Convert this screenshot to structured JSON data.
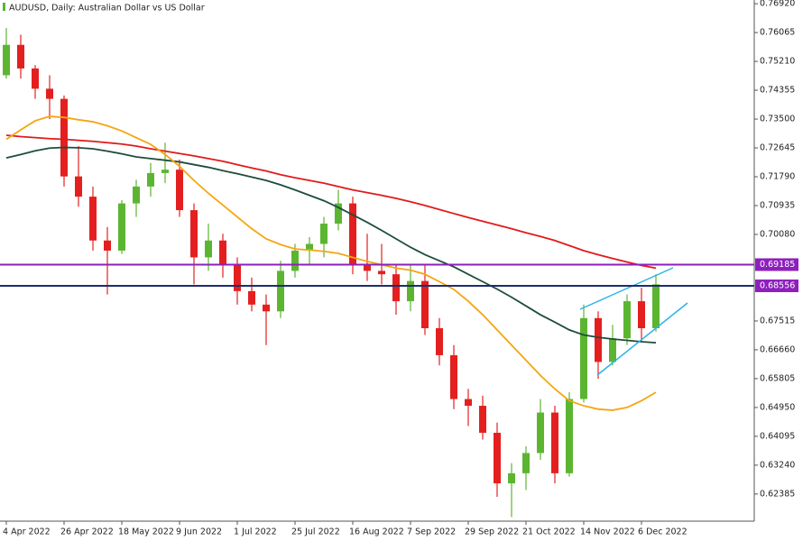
{
  "chart_data": {
    "type": "candlestick",
    "title": "AUDUSD, Daily:  Australian Dollar vs US Dollar",
    "categories": [
      "4 Apr 2022",
      null,
      null,
      null,
      "26 Apr 2022",
      null,
      null,
      null,
      "18 May 2022",
      null,
      null,
      null,
      "9 Jun 2022",
      null,
      null,
      null,
      "1 Jul 2022",
      null,
      null,
      null,
      "25 Jul 2022",
      null,
      null,
      null,
      "16 Aug 2022",
      null,
      null,
      null,
      "7 Sep 2022",
      null,
      null,
      null,
      "29 Sep 2022",
      null,
      null,
      null,
      "21 Oct 2022",
      null,
      null,
      null,
      "14 Nov 2022",
      null,
      null,
      null,
      "6 Dec 2022",
      null
    ],
    "ohlc": [
      [
        0.748,
        0.762,
        0.747,
        0.757
      ],
      [
        0.757,
        0.76,
        0.747,
        0.75
      ],
      [
        0.75,
        0.751,
        0.741,
        0.744
      ],
      [
        0.744,
        0.748,
        0.735,
        0.741
      ],
      [
        0.741,
        0.742,
        0.715,
        0.718
      ],
      [
        0.718,
        0.727,
        0.709,
        0.712
      ],
      [
        0.712,
        0.715,
        0.696,
        0.699
      ],
      [
        0.699,
        0.703,
        0.683,
        0.696
      ],
      [
        0.696,
        0.711,
        0.695,
        0.71
      ],
      [
        0.71,
        0.717,
        0.706,
        0.715
      ],
      [
        0.715,
        0.722,
        0.712,
        0.719
      ],
      [
        0.719,
        0.728,
        0.716,
        0.72
      ],
      [
        0.72,
        0.723,
        0.706,
        0.708
      ],
      [
        0.708,
        0.71,
        0.686,
        0.694
      ],
      [
        0.694,
        0.704,
        0.69,
        0.699
      ],
      [
        0.699,
        0.701,
        0.688,
        0.692
      ],
      [
        0.692,
        0.694,
        0.68,
        0.684
      ],
      [
        0.684,
        0.688,
        0.678,
        0.68
      ],
      [
        0.68,
        0.683,
        0.668,
        0.678
      ],
      [
        0.678,
        0.693,
        0.676,
        0.69
      ],
      [
        0.69,
        0.698,
        0.688,
        0.696
      ],
      [
        0.696,
        0.7,
        0.692,
        0.698
      ],
      [
        0.698,
        0.706,
        0.694,
        0.704
      ],
      [
        0.704,
        0.714,
        0.702,
        0.71
      ],
      [
        0.71,
        0.712,
        0.689,
        0.692
      ],
      [
        0.692,
        0.701,
        0.687,
        0.69
      ],
      [
        0.69,
        0.698,
        0.686,
        0.689
      ],
      [
        0.689,
        0.692,
        0.677,
        0.681
      ],
      [
        0.681,
        0.692,
        0.678,
        0.687
      ],
      [
        0.687,
        0.692,
        0.671,
        0.673
      ],
      [
        0.673,
        0.676,
        0.662,
        0.665
      ],
      [
        0.665,
        0.668,
        0.649,
        0.652
      ],
      [
        0.652,
        0.655,
        0.644,
        0.65
      ],
      [
        0.65,
        0.653,
        0.64,
        0.642
      ],
      [
        0.642,
        0.645,
        0.623,
        0.627
      ],
      [
        0.627,
        0.633,
        0.617,
        0.63
      ],
      [
        0.63,
        0.638,
        0.625,
        0.636
      ],
      [
        0.636,
        0.652,
        0.634,
        0.648
      ],
      [
        0.648,
        0.65,
        0.627,
        0.63
      ],
      [
        0.63,
        0.654,
        0.629,
        0.652
      ],
      [
        0.652,
        0.68,
        0.651,
        0.676
      ],
      [
        0.676,
        0.678,
        0.658,
        0.663
      ],
      [
        0.663,
        0.674,
        0.662,
        0.67
      ],
      [
        0.67,
        0.683,
        0.668,
        0.681
      ],
      [
        0.681,
        0.685,
        0.669,
        0.673
      ],
      [
        0.673,
        0.689,
        0.672,
        0.686
      ]
    ],
    "up_color": "#5cb531",
    "down_color": "#e3201f",
    "series": [
      {
        "color": "#e01b1b",
        "values": [
          0.7302,
          0.7298,
          0.7295,
          0.7292,
          0.729,
          0.7287,
          0.7284,
          0.728,
          0.7276,
          0.727,
          0.7262,
          0.7255,
          0.7248,
          0.7241,
          0.7233,
          0.7225,
          0.7215,
          0.7205,
          0.7196,
          0.7185,
          0.7176,
          0.7168,
          0.716,
          0.715,
          0.714,
          0.7132,
          0.7124,
          0.7115,
          0.7105,
          0.7094,
          0.7082,
          0.707,
          0.7058,
          0.7047,
          0.7036,
          0.7025,
          0.7013,
          0.7002,
          0.699,
          0.6975,
          0.696,
          0.6948,
          0.6937,
          0.6926,
          0.6916,
          0.6908
        ]
      },
      {
        "color": "#1e4d3a",
        "values": [
          0.7235,
          0.7245,
          0.7256,
          0.7264,
          0.7266,
          0.7265,
          0.7262,
          0.7255,
          0.7247,
          0.7238,
          0.7233,
          0.7228,
          0.7223,
          0.7215,
          0.7207,
          0.7197,
          0.7188,
          0.7178,
          0.7168,
          0.7155,
          0.714,
          0.7124,
          0.7108,
          0.7088,
          0.7066,
          0.7044,
          0.702,
          0.6995,
          0.697,
          0.6948,
          0.693,
          0.6912,
          0.689,
          0.6868,
          0.6846,
          0.6822,
          0.6796,
          0.677,
          0.6748,
          0.6725,
          0.671,
          0.6703,
          0.6698,
          0.6694,
          0.669,
          0.6687
        ]
      },
      {
        "color": "#f5a511",
        "values": [
          0.729,
          0.7318,
          0.7345,
          0.7358,
          0.7355,
          0.7348,
          0.7342,
          0.733,
          0.7315,
          0.7295,
          0.7275,
          0.7245,
          0.721,
          0.7168,
          0.713,
          0.7095,
          0.706,
          0.7025,
          0.6995,
          0.6978,
          0.6965,
          0.6962,
          0.6958,
          0.6952,
          0.694,
          0.6928,
          0.6918,
          0.6908,
          0.6902,
          0.689,
          0.6868,
          0.6845,
          0.681,
          0.677,
          0.6725,
          0.668,
          0.6635,
          0.659,
          0.655,
          0.6515,
          0.65,
          0.649,
          0.6487,
          0.6495,
          0.6515,
          0.654
        ]
      }
    ],
    "levels": [
      {
        "value": 0.69185,
        "color": "#8e1fbd",
        "label_color": "#8e1fbd"
      },
      {
        "value": 0.68556,
        "color": "#1e2d6b",
        "label_color": "#8e1fbd"
      }
    ],
    "ylim": [
      0.6158,
      0.7703
    ],
    "yticks": [
      {
        "value": 0.7692,
        "label": "0.76920"
      },
      {
        "value": 0.76065,
        "label": "0.76065"
      },
      {
        "value": 0.7521,
        "label": "0.75210"
      },
      {
        "value": 0.74355,
        "label": "0.74355"
      },
      {
        "value": 0.735,
        "label": "0.73500"
      },
      {
        "value": 0.72645,
        "label": "0.72645"
      },
      {
        "value": 0.7179,
        "label": "0.71790"
      },
      {
        "value": 0.70935,
        "label": "0.70935"
      },
      {
        "value": 0.7008,
        "label": "0.70080"
      },
      {
        "value": 0.67515,
        "label": "0.67515"
      },
      {
        "value": 0.6666,
        "label": "0.66660"
      },
      {
        "value": 0.65805,
        "label": "0.65805"
      },
      {
        "value": 0.6495,
        "label": "0.64950"
      },
      {
        "value": 0.64095,
        "label": "0.64095"
      },
      {
        "value": 0.6324,
        "label": "0.63240"
      },
      {
        "value": 0.62385,
        "label": "0.62385"
      }
    ],
    "grid": false
  }
}
